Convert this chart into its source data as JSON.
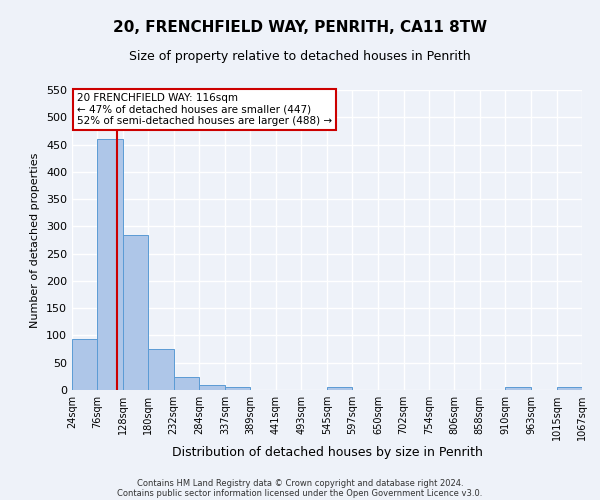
{
  "title": "20, FRENCHFIELD WAY, PENRITH, CA11 8TW",
  "subtitle": "Size of property relative to detached houses in Penrith",
  "xlabel": "Distribution of detached houses by size in Penrith",
  "ylabel": "Number of detached properties",
  "bar_edges": [
    24,
    76,
    128,
    180,
    232,
    284,
    337,
    389,
    441,
    493,
    545,
    597,
    650,
    702,
    754,
    806,
    858,
    910,
    963,
    1015,
    1067
  ],
  "bar_heights": [
    93,
    460,
    285,
    76,
    24,
    10,
    6,
    0,
    0,
    0,
    5,
    0,
    0,
    0,
    0,
    0,
    0,
    5,
    0,
    5
  ],
  "bar_color": "#aec6e8",
  "bar_edge_color": "#5b9bd5",
  "property_line_x": 116,
  "property_line_color": "#cc0000",
  "annotation_text": "20 FRENCHFIELD WAY: 116sqm\n← 47% of detached houses are smaller (447)\n52% of semi-detached houses are larger (488) →",
  "annotation_box_color": "#ffffff",
  "annotation_box_edge_color": "#cc0000",
  "ylim": [
    0,
    550
  ],
  "yticks": [
    0,
    50,
    100,
    150,
    200,
    250,
    300,
    350,
    400,
    450,
    500,
    550
  ],
  "tick_labels": [
    "24sqm",
    "76sqm",
    "128sqm",
    "180sqm",
    "232sqm",
    "284sqm",
    "337sqm",
    "389sqm",
    "441sqm",
    "493sqm",
    "545sqm",
    "597sqm",
    "650sqm",
    "702sqm",
    "754sqm",
    "806sqm",
    "858sqm",
    "910sqm",
    "963sqm",
    "1015sqm",
    "1067sqm"
  ],
  "footer_line1": "Contains HM Land Registry data © Crown copyright and database right 2024.",
  "footer_line2": "Contains public sector information licensed under the Open Government Licence v3.0.",
  "background_color": "#eef2f9",
  "grid_color": "#ffffff",
  "title_fontsize": 11,
  "subtitle_fontsize": 9,
  "xlabel_fontsize": 9,
  "ylabel_fontsize": 8,
  "ytick_fontsize": 8,
  "xtick_fontsize": 7
}
